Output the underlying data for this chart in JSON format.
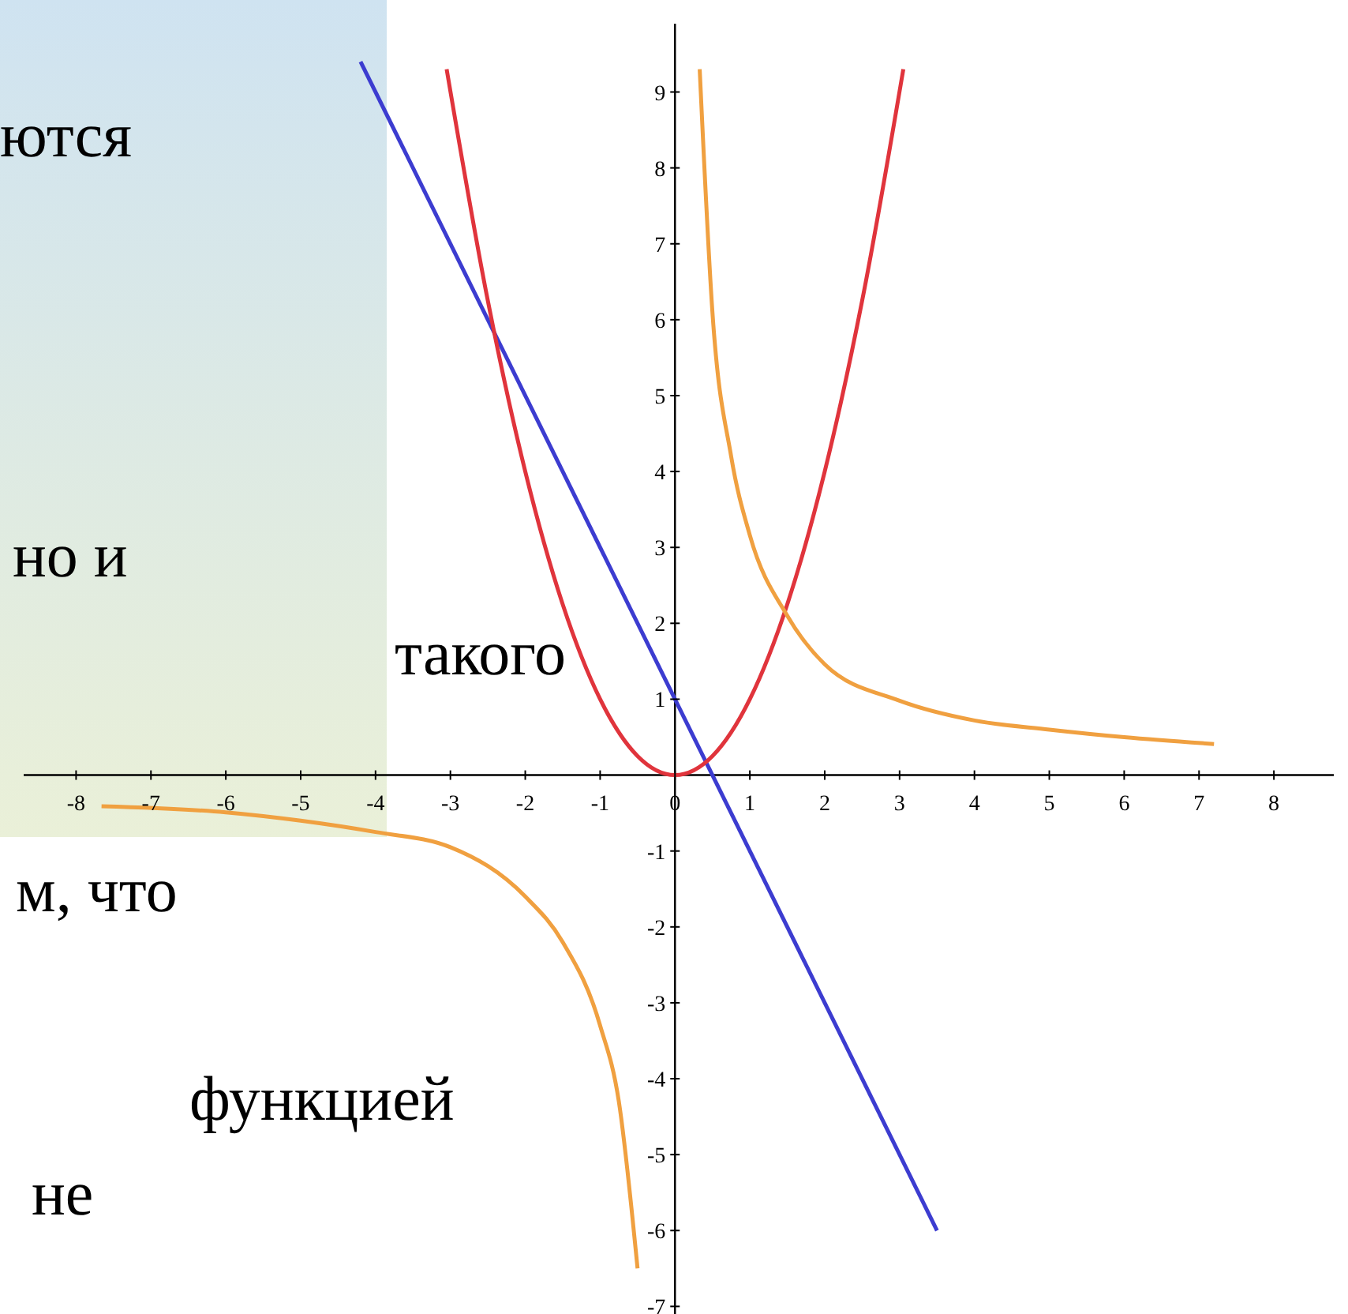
{
  "chart_data": {
    "type": "line",
    "xlim": [
      -8.7,
      8.8
    ],
    "ylim": [
      -7.1,
      9.9
    ],
    "xticks": [
      -8,
      -7,
      -6,
      -5,
      -4,
      -3,
      -2,
      -1,
      0,
      1,
      2,
      3,
      4,
      5,
      6,
      7,
      8
    ],
    "yticks": [
      -7,
      -6,
      -5,
      -4,
      -3,
      -2,
      -1,
      1,
      2,
      3,
      4,
      5,
      6,
      7,
      8,
      9
    ],
    "grid": false,
    "marker": "none",
    "line_style": "solid",
    "annotations": [
      "ются",
      "но и",
      "такого",
      "м, что",
      "функцией",
      "не"
    ],
    "series": [
      {
        "color": "#3c3cd0",
        "x": [
          -4.2,
          3.5
        ],
        "values": [
          9.4,
          -6
        ]
      },
      {
        "color": "#e0343c",
        "x": [
          -3.05,
          -2.5,
          -2,
          -1.5,
          -1,
          -0.5,
          0,
          0.5,
          1,
          1.5,
          2,
          2.5,
          3.05
        ],
        "values": [
          9.3,
          6.25,
          4,
          2.25,
          1,
          0.25,
          0,
          0.25,
          1,
          2.25,
          4,
          6.25,
          9.3
        ]
      },
      {
        "color": "#f0a040",
        "x": [
          0.33,
          0.5,
          0.75,
          1,
          1.5,
          2,
          3,
          4,
          5,
          6,
          7.2
        ],
        "values": [
          9.3,
          6.1,
          4.2,
          3.16,
          2.1,
          1.46,
          0.98,
          0.72,
          0.6,
          0.5,
          0.41
        ]
      },
      {
        "color": "#f0a040",
        "x": [
          -7.66,
          -6,
          -5,
          -4,
          -3,
          -2,
          -1.5,
          -1,
          -0.75,
          -0.5
        ],
        "values": [
          -0.41,
          -0.49,
          -0.6,
          -0.75,
          -0.95,
          -1.6,
          -2.2,
          -3.3,
          -4.3,
          -6.5
        ]
      }
    ]
  }
}
